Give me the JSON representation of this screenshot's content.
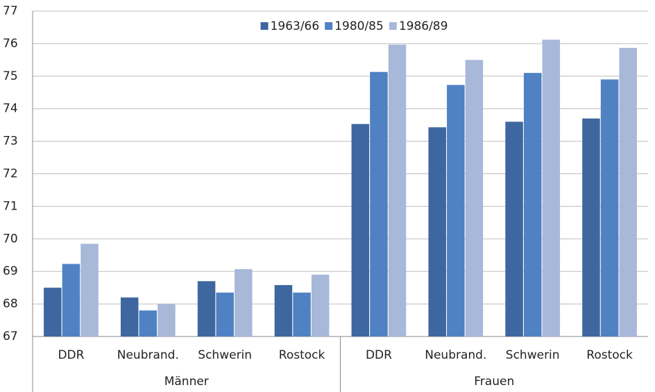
{
  "chart_data": {
    "type": "bar",
    "categories": [
      "DDR",
      "Neubrand.",
      "Schwerin",
      "Rostock",
      "DDR",
      "Neubrand.",
      "Schwerin",
      "Rostock"
    ],
    "groups": [
      {
        "name": "Männer",
        "categories": [
          "DDR",
          "Neubrand.",
          "Schwerin",
          "Rostock"
        ]
      },
      {
        "name": "Frauen",
        "categories": [
          "DDR",
          "Neubrand.",
          "Schwerin",
          "Rostock"
        ]
      }
    ],
    "series": [
      {
        "name": "1963/66",
        "color": "#3e679f",
        "values": [
          68.5,
          68.2,
          68.7,
          68.58,
          73.53,
          73.43,
          73.6,
          73.7
        ]
      },
      {
        "name": "1980/85",
        "color": "#4f81c3",
        "values": [
          69.23,
          67.8,
          68.35,
          68.35,
          75.13,
          74.73,
          75.1,
          74.9
        ]
      },
      {
        "name": "1986/89",
        "color": "#a7b8d9",
        "values": [
          69.85,
          68.0,
          69.07,
          68.9,
          75.97,
          75.5,
          76.12,
          75.87
        ]
      }
    ],
    "ylim": [
      67,
      77
    ],
    "yticks": [
      67,
      68,
      69,
      70,
      71,
      72,
      73,
      74,
      75,
      76,
      77
    ],
    "grid": true,
    "legend": "top"
  }
}
